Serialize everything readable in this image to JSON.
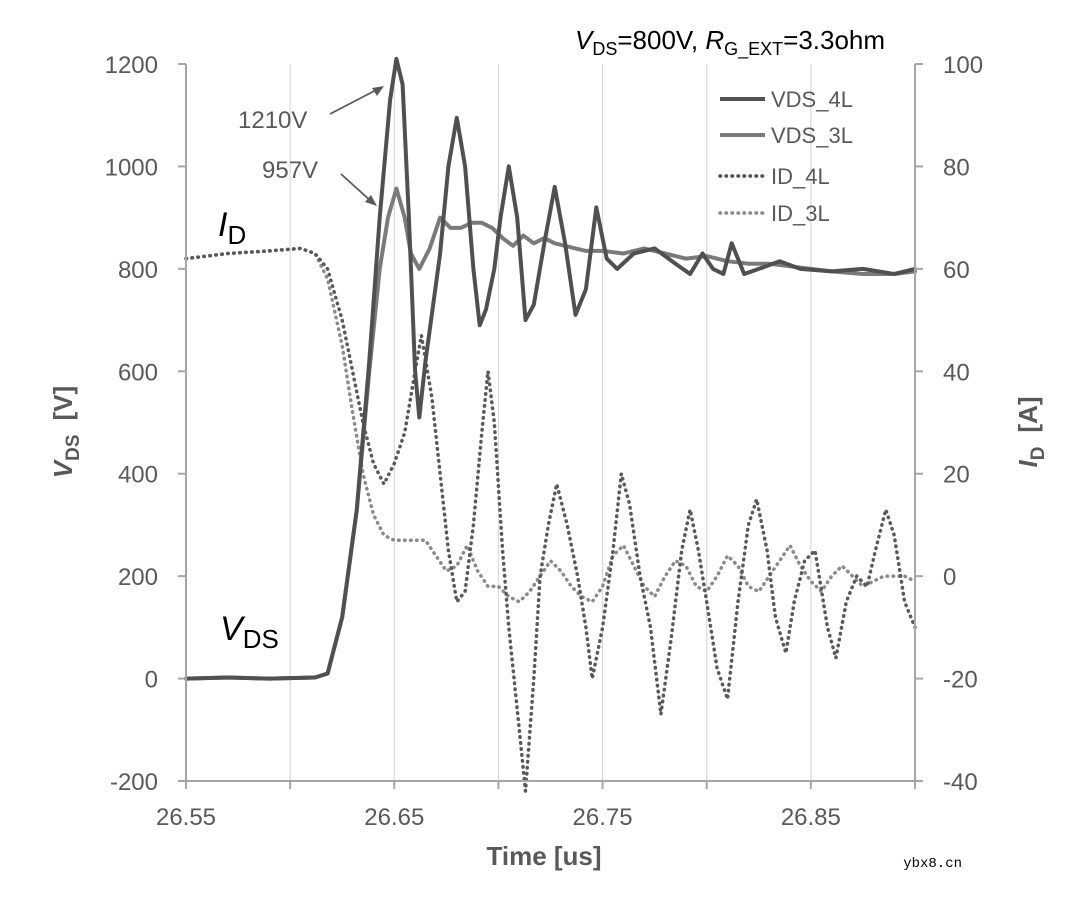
{
  "chart_data": {
    "type": "line",
    "title_parts": {
      "v": "V",
      "v_sub": "DS",
      "v_val": "=800V, ",
      "r": "R",
      "r_sub": "G_EXT",
      "r_val": "=3.3ohm"
    },
    "xlabel": "Time [us]",
    "ylabel_left": {
      "main": "V",
      "sub": "DS",
      "unit": "[V]"
    },
    "ylabel_right": {
      "main": "I",
      "sub": "D",
      "unit": "[A]"
    },
    "x_range": [
      26.55,
      26.9
    ],
    "x_ticks": [
      26.55,
      26.65,
      26.75,
      26.85
    ],
    "x_tick_labels": [
      "26.55",
      "26.65",
      "26.75",
      "26.85"
    ],
    "x_gridlines": [
      26.55,
      26.6,
      26.65,
      26.7,
      26.75,
      26.8,
      26.85,
      26.9
    ],
    "y_left_range": [
      -200,
      1200
    ],
    "y_left_ticks": [
      -200,
      0,
      200,
      400,
      600,
      800,
      1000,
      1200
    ],
    "y_left_tick_labels": [
      "-200",
      "0",
      "200",
      "400",
      "600",
      "800",
      "1000",
      "1200"
    ],
    "y_right_range": [
      -40,
      100
    ],
    "y_right_ticks": [
      -40,
      -20,
      0,
      20,
      40,
      60,
      80,
      100
    ],
    "y_right_tick_labels": [
      "-40",
      "-20",
      "0",
      "20",
      "40",
      "60",
      "80",
      "100"
    ],
    "grid": "vertical",
    "legend_position": "top-right",
    "series": [
      {
        "name": "VDS_4L",
        "axis": "left",
        "style": "solid",
        "color": "#505050",
        "points": [
          [
            26.55,
            0
          ],
          [
            26.57,
            2
          ],
          [
            26.59,
            0
          ],
          [
            26.612,
            2
          ],
          [
            26.618,
            10
          ],
          [
            26.625,
            120
          ],
          [
            26.632,
            330
          ],
          [
            26.638,
            620
          ],
          [
            26.643,
            900
          ],
          [
            26.648,
            1130
          ],
          [
            26.651,
            1210
          ],
          [
            26.654,
            1160
          ],
          [
            26.657,
            900
          ],
          [
            26.66,
            600
          ],
          [
            26.662,
            510
          ],
          [
            26.665,
            620
          ],
          [
            26.668,
            710
          ],
          [
            26.672,
            830
          ],
          [
            26.676,
            1000
          ],
          [
            26.68,
            1095
          ],
          [
            26.684,
            1000
          ],
          [
            26.688,
            800
          ],
          [
            26.691,
            690
          ],
          [
            26.694,
            720
          ],
          [
            26.698,
            800
          ],
          [
            26.701,
            900
          ],
          [
            26.705,
            1000
          ],
          [
            26.709,
            900
          ],
          [
            26.713,
            700
          ],
          [
            26.717,
            730
          ],
          [
            26.722,
            850
          ],
          [
            26.727,
            960
          ],
          [
            26.732,
            850
          ],
          [
            26.737,
            710
          ],
          [
            26.742,
            760
          ],
          [
            26.747,
            920
          ],
          [
            26.752,
            820
          ],
          [
            26.757,
            800
          ],
          [
            26.765,
            830
          ],
          [
            26.775,
            840
          ],
          [
            26.785,
            810
          ],
          [
            26.792,
            790
          ],
          [
            26.798,
            830
          ],
          [
            26.803,
            800
          ],
          [
            26.808,
            790
          ],
          [
            26.812,
            850
          ],
          [
            26.818,
            790
          ],
          [
            26.825,
            800
          ],
          [
            26.835,
            815
          ],
          [
            26.845,
            800
          ],
          [
            26.86,
            795
          ],
          [
            26.875,
            800
          ],
          [
            26.89,
            790
          ],
          [
            26.9,
            800
          ]
        ]
      },
      {
        "name": "VDS_3L",
        "axis": "left",
        "style": "solid",
        "color": "#7a7a7a",
        "points": [
          [
            26.55,
            0
          ],
          [
            26.57,
            2
          ],
          [
            26.59,
            0
          ],
          [
            26.612,
            2
          ],
          [
            26.618,
            10
          ],
          [
            26.625,
            120
          ],
          [
            26.632,
            330
          ],
          [
            26.638,
            600
          ],
          [
            26.643,
            800
          ],
          [
            26.647,
            900
          ],
          [
            26.651,
            957
          ],
          [
            26.655,
            900
          ],
          [
            26.658,
            830
          ],
          [
            26.662,
            800
          ],
          [
            26.667,
            840
          ],
          [
            26.672,
            900
          ],
          [
            26.677,
            880
          ],
          [
            26.682,
            880
          ],
          [
            26.687,
            890
          ],
          [
            26.692,
            890
          ],
          [
            26.697,
            880
          ],
          [
            26.702,
            860
          ],
          [
            26.707,
            845
          ],
          [
            26.712,
            865
          ],
          [
            26.717,
            850
          ],
          [
            26.722,
            860
          ],
          [
            26.727,
            850
          ],
          [
            26.732,
            845
          ],
          [
            26.737,
            840
          ],
          [
            26.742,
            835
          ],
          [
            26.75,
            835
          ],
          [
            26.76,
            830
          ],
          [
            26.77,
            840
          ],
          [
            26.78,
            830
          ],
          [
            26.79,
            820
          ],
          [
            26.8,
            825
          ],
          [
            26.81,
            815
          ],
          [
            26.82,
            810
          ],
          [
            26.83,
            810
          ],
          [
            26.84,
            805
          ],
          [
            26.85,
            800
          ],
          [
            26.86,
            795
          ],
          [
            26.875,
            790
          ],
          [
            26.89,
            790
          ],
          [
            26.9,
            795
          ]
        ]
      },
      {
        "name": "ID_4L",
        "axis": "right",
        "style": "dotted",
        "color": "#595959",
        "points": [
          [
            26.55,
            62
          ],
          [
            26.57,
            63
          ],
          [
            26.59,
            63.5
          ],
          [
            26.605,
            64
          ],
          [
            26.612,
            63
          ],
          [
            26.618,
            60
          ],
          [
            26.625,
            50
          ],
          [
            26.63,
            40
          ],
          [
            26.635,
            30
          ],
          [
            26.64,
            22
          ],
          [
            26.645,
            18
          ],
          [
            26.65,
            22
          ],
          [
            26.655,
            28
          ],
          [
            26.66,
            40
          ],
          [
            26.663,
            47
          ],
          [
            26.668,
            35
          ],
          [
            26.672,
            20
          ],
          [
            26.676,
            5
          ],
          [
            26.68,
            -5
          ],
          [
            26.684,
            -3
          ],
          [
            26.688,
            10
          ],
          [
            26.692,
            28
          ],
          [
            26.695,
            40
          ],
          [
            26.698,
            30
          ],
          [
            26.702,
            5
          ],
          [
            26.705,
            -10
          ],
          [
            26.71,
            -30
          ],
          [
            26.713,
            -42
          ],
          [
            26.717,
            -20
          ],
          [
            26.72,
            0
          ],
          [
            26.724,
            10
          ],
          [
            26.728,
            18
          ],
          [
            26.733,
            10
          ],
          [
            26.738,
            0
          ],
          [
            26.742,
            -10
          ],
          [
            26.745,
            -20
          ],
          [
            26.75,
            -10
          ],
          [
            26.755,
            5
          ],
          [
            26.759,
            20
          ],
          [
            26.763,
            14
          ],
          [
            26.768,
            0
          ],
          [
            26.773,
            -10
          ],
          [
            26.778,
            -27
          ],
          [
            26.783,
            -12
          ],
          [
            26.788,
            5
          ],
          [
            26.792,
            13
          ],
          [
            26.796,
            5
          ],
          [
            26.8,
            -5
          ],
          [
            26.805,
            -18
          ],
          [
            26.81,
            -24
          ],
          [
            26.815,
            -5
          ],
          [
            26.82,
            10
          ],
          [
            26.824,
            15
          ],
          [
            26.829,
            5
          ],
          [
            26.833,
            -8
          ],
          [
            26.838,
            -15
          ],
          [
            26.842,
            -5
          ],
          [
            26.847,
            3
          ],
          [
            26.852,
            5
          ],
          [
            26.858,
            -10
          ],
          [
            26.862,
            -16
          ],
          [
            26.867,
            -5
          ],
          [
            26.872,
            0
          ],
          [
            26.877,
            -2
          ],
          [
            26.881,
            5
          ],
          [
            26.886,
            13
          ],
          [
            26.89,
            8
          ],
          [
            26.895,
            -5
          ],
          [
            26.9,
            -10
          ]
        ]
      },
      {
        "name": "ID_3L",
        "axis": "right",
        "style": "dotted",
        "color": "#8a8a8a",
        "points": [
          [
            26.55,
            62
          ],
          [
            26.57,
            63
          ],
          [
            26.59,
            63.5
          ],
          [
            26.605,
            64
          ],
          [
            26.612,
            63
          ],
          [
            26.618,
            58
          ],
          [
            26.625,
            45
          ],
          [
            26.63,
            32
          ],
          [
            26.635,
            20
          ],
          [
            26.64,
            12
          ],
          [
            26.645,
            8
          ],
          [
            26.65,
            7
          ],
          [
            26.655,
            7
          ],
          [
            26.66,
            7
          ],
          [
            26.665,
            7
          ],
          [
            26.67,
            4
          ],
          [
            26.675,
            1
          ],
          [
            26.68,
            2
          ],
          [
            26.685,
            6
          ],
          [
            26.69,
            1
          ],
          [
            26.695,
            -2
          ],
          [
            26.7,
            -2
          ],
          [
            26.705,
            -4
          ],
          [
            26.71,
            -5
          ],
          [
            26.715,
            -3
          ],
          [
            26.72,
            0
          ],
          [
            26.725,
            3
          ],
          [
            26.73,
            1
          ],
          [
            26.735,
            -2
          ],
          [
            26.74,
            -4
          ],
          [
            26.745,
            -5
          ],
          [
            26.75,
            -2
          ],
          [
            26.755,
            4
          ],
          [
            26.76,
            6
          ],
          [
            26.765,
            2
          ],
          [
            26.77,
            -2
          ],
          [
            26.775,
            -4
          ],
          [
            26.78,
            0
          ],
          [
            26.785,
            3
          ],
          [
            26.79,
            2
          ],
          [
            26.795,
            -2
          ],
          [
            26.8,
            -3
          ],
          [
            26.805,
            0
          ],
          [
            26.81,
            4
          ],
          [
            26.815,
            2
          ],
          [
            26.82,
            -2
          ],
          [
            26.825,
            -3
          ],
          [
            26.83,
            0
          ],
          [
            26.835,
            3
          ],
          [
            26.84,
            6
          ],
          [
            26.845,
            2
          ],
          [
            26.85,
            -1
          ],
          [
            26.855,
            -3
          ],
          [
            26.86,
            0
          ],
          [
            26.865,
            2
          ],
          [
            26.87,
            0
          ],
          [
            26.875,
            -2
          ],
          [
            26.88,
            -1
          ],
          [
            26.885,
            0
          ],
          [
            26.89,
            0
          ],
          [
            26.895,
            0
          ],
          [
            26.9,
            -1
          ]
        ]
      }
    ],
    "legend": [
      {
        "label": "VDS_4L",
        "style": "solid",
        "color": "#505050"
      },
      {
        "label": "VDS_3L",
        "style": "solid",
        "color": "#7a7a7a"
      },
      {
        "label": "ID_4L",
        "style": "dotted",
        "color": "#505050"
      },
      {
        "label": "ID_3L",
        "style": "dotted",
        "color": "#8a8a8a"
      }
    ],
    "annotations": [
      {
        "text": "1210V",
        "x": 26.651,
        "y": 1210
      },
      {
        "text": "957V",
        "x": 26.651,
        "y": 957
      }
    ],
    "trace_labels": [
      {
        "main": "I",
        "sub": "D"
      },
      {
        "main": "V",
        "sub": "DS"
      }
    ]
  },
  "watermark": "ybx8.cn"
}
